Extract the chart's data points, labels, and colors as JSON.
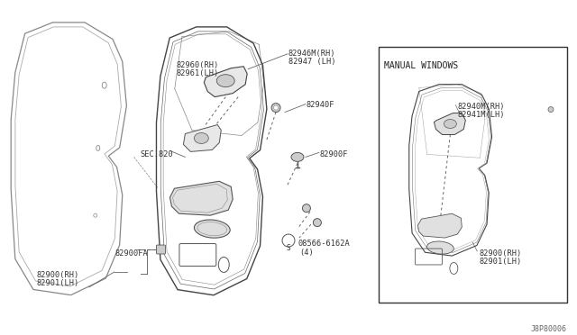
{
  "bg_color": "#ffffff",
  "line_color": "#555555",
  "dark_color": "#333333",
  "figure_id": "J8P80006",
  "labels": {
    "sec820": "SEC.820",
    "82900rh": "82900(RH)",
    "82901lh": "82901(LH)",
    "82900fa": "82900FA",
    "82960rh": "82960(RH)",
    "82961lh": "82961(LH)",
    "82946mrh": "82946M(RH)",
    "82947lh": "82947 (LH)",
    "82940f": "82940F",
    "82900f": "82900F",
    "screw_label": "08566-6162A",
    "screw_qty": "(4)",
    "manual_windows": "MANUAL WINDOWS",
    "82940mrh": "82940M(RH)",
    "82941mlh": "82941M(LH)",
    "82900rh2": "82900(RH)",
    "82901lh2": "82901(LH)"
  }
}
